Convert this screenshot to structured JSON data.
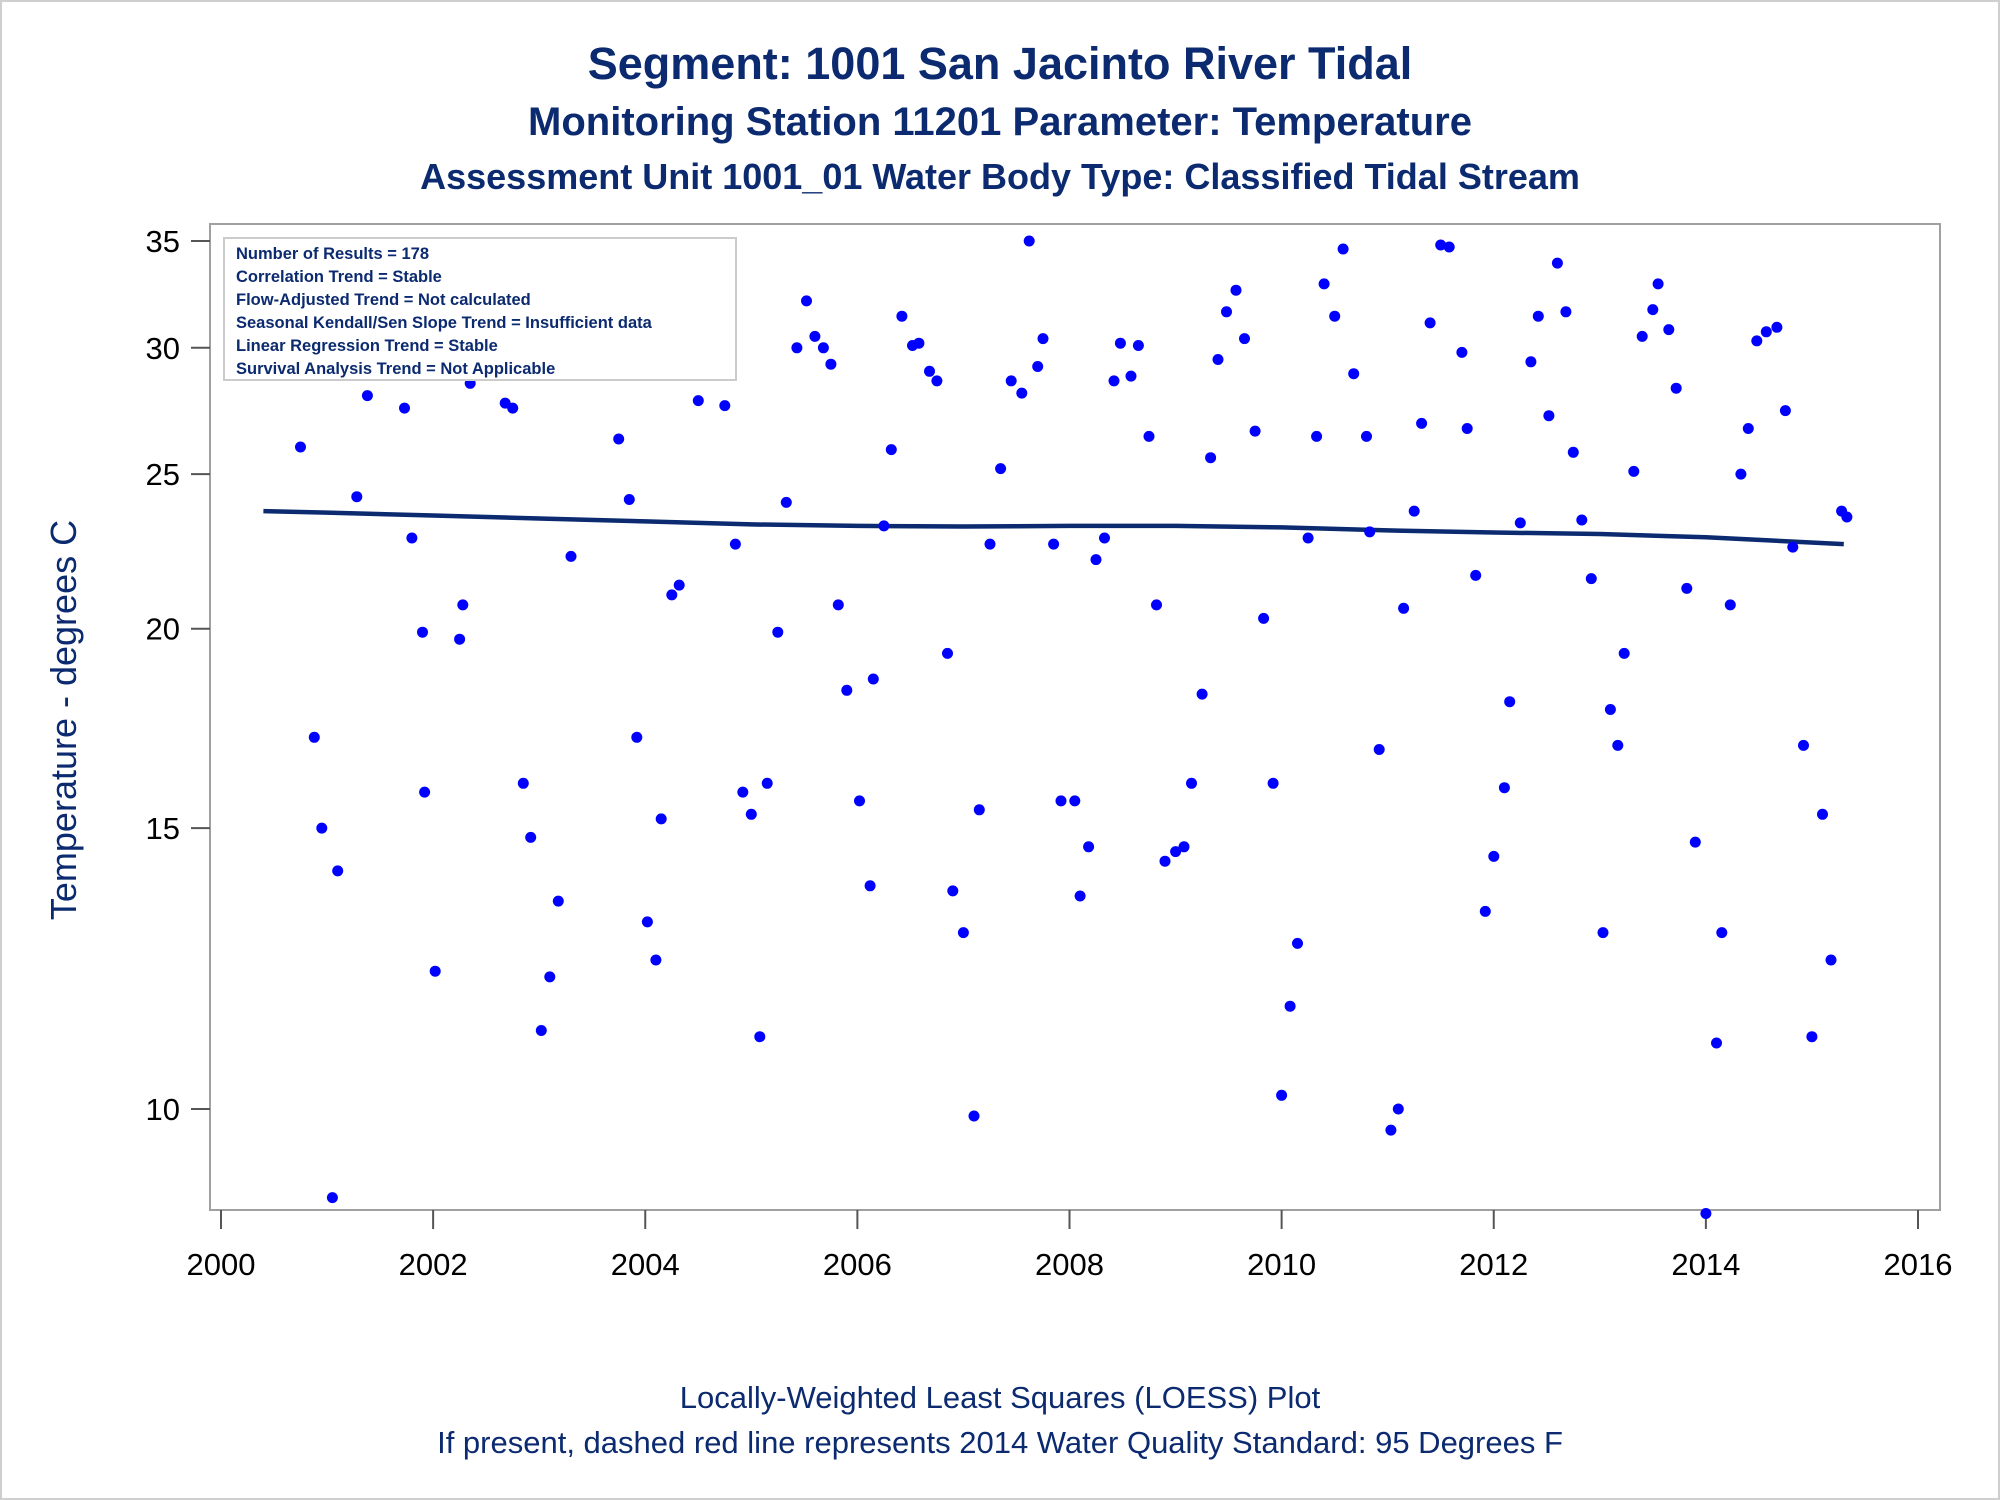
{
  "titles": {
    "line1": "Segment: 1001  San Jacinto River Tidal",
    "line2": "Monitoring Station 11201 Parameter: Temperature",
    "line3": "Assessment Unit 1001_01   Water Body Type: Classified Tidal Stream"
  },
  "footnotes": {
    "line1": "Locally-Weighted Least Squares (LOESS) Plot",
    "line2": "If present, dashed red line represents 2014 Water Quality Standard: 95   Degrees F"
  },
  "inset": [
    "Number of Results = 178",
    "Correlation Trend = Stable",
    "Flow-Adjusted Trend = Not calculated",
    "Seasonal Kendall/Sen Slope Trend = Insufficient data",
    "Linear Regression Trend = Stable",
    "Survival Analysis Trend = Not Applicable"
  ],
  "colors": {
    "points": "#0000ff",
    "loess": "#0b2a6f",
    "text": "#0b2a6f",
    "frame": "#a0a0a0"
  },
  "chart_data": {
    "type": "scatter",
    "ylabel": "Temperature - degrees C",
    "xlabel": "",
    "y_scale": "log",
    "xlim": [
      2000,
      2016
    ],
    "ylim": [
      8.5,
      35.5
    ],
    "x_ticks": [
      2000,
      2002,
      2004,
      2006,
      2008,
      2010,
      2012,
      2014,
      2016
    ],
    "y_ticks": [
      10,
      15,
      20,
      25,
      30,
      35
    ],
    "grid": false,
    "series": [
      {
        "kind": "scatter",
        "points": [
          [
            2000.4,
            29.3
          ],
          [
            2000.52,
            32.9
          ],
          [
            2000.65,
            33.0
          ],
          [
            2000.7,
            29.0
          ],
          [
            2000.75,
            26.0
          ],
          [
            2000.88,
            17.1
          ],
          [
            2000.95,
            15.0
          ],
          [
            2001.05,
            8.8
          ],
          [
            2001.1,
            14.1
          ],
          [
            2001.28,
            24.2
          ],
          [
            2001.38,
            28.0
          ],
          [
            2001.45,
            29.0
          ],
          [
            2001.55,
            33.0
          ],
          [
            2001.65,
            32.0
          ],
          [
            2001.73,
            27.5
          ],
          [
            2001.8,
            22.8
          ],
          [
            2001.9,
            19.9
          ],
          [
            2001.92,
            15.8
          ],
          [
            2002.02,
            12.2
          ],
          [
            2002.25,
            19.7
          ],
          [
            2002.28,
            20.7
          ],
          [
            2002.35,
            28.5
          ],
          [
            2002.42,
            29.0
          ],
          [
            2002.5,
            31.8
          ],
          [
            2002.6,
            30.0
          ],
          [
            2002.68,
            27.7
          ],
          [
            2002.75,
            27.5
          ],
          [
            2002.85,
            16.0
          ],
          [
            2002.92,
            14.8
          ],
          [
            2003.02,
            11.2
          ],
          [
            2003.1,
            12.1
          ],
          [
            2003.18,
            13.5
          ],
          [
            2003.3,
            22.2
          ],
          [
            2003.38,
            29.0
          ],
          [
            2003.4,
            30.0
          ],
          [
            2003.55,
            29.2
          ],
          [
            2003.6,
            31.9
          ],
          [
            2003.68,
            29.0
          ],
          [
            2003.75,
            26.3
          ],
          [
            2003.85,
            24.1
          ],
          [
            2003.92,
            17.1
          ],
          [
            2004.02,
            13.1
          ],
          [
            2004.1,
            12.4
          ],
          [
            2004.15,
            15.2
          ],
          [
            2004.25,
            21.0
          ],
          [
            2004.32,
            21.3
          ],
          [
            2004.4,
            30.0
          ],
          [
            2004.5,
            27.8
          ],
          [
            2004.6,
            32.0
          ],
          [
            2004.7,
            30.7
          ],
          [
            2004.75,
            27.6
          ],
          [
            2004.85,
            22.6
          ],
          [
            2004.92,
            15.8
          ],
          [
            2005.0,
            15.3
          ],
          [
            2005.08,
            11.1
          ],
          [
            2005.15,
            16.0
          ],
          [
            2005.25,
            19.9
          ],
          [
            2005.33,
            24.0
          ],
          [
            2005.43,
            30.0
          ],
          [
            2005.52,
            32.1
          ],
          [
            2005.6,
            30.5
          ],
          [
            2005.68,
            30.0
          ],
          [
            2005.75,
            29.3
          ],
          [
            2005.82,
            20.7
          ],
          [
            2005.9,
            18.3
          ],
          [
            2006.02,
            15.6
          ],
          [
            2006.12,
            13.8
          ],
          [
            2006.15,
            18.6
          ],
          [
            2006.25,
            23.2
          ],
          [
            2006.32,
            25.9
          ],
          [
            2006.42,
            31.4
          ],
          [
            2006.52,
            30.1
          ],
          [
            2006.58,
            30.2
          ],
          [
            2006.68,
            29.0
          ],
          [
            2006.75,
            28.6
          ],
          [
            2006.85,
            19.3
          ],
          [
            2006.9,
            13.7
          ],
          [
            2007.0,
            12.9
          ],
          [
            2007.1,
            9.9
          ],
          [
            2007.15,
            15.4
          ],
          [
            2007.25,
            22.6
          ],
          [
            2007.35,
            25.2
          ],
          [
            2007.45,
            28.6
          ],
          [
            2007.55,
            28.1
          ],
          [
            2007.62,
            35.0
          ],
          [
            2007.7,
            29.2
          ],
          [
            2007.75,
            30.4
          ],
          [
            2007.85,
            22.6
          ],
          [
            2007.92,
            15.6
          ],
          [
            2008.05,
            15.6
          ],
          [
            2008.1,
            13.6
          ],
          [
            2008.18,
            14.6
          ],
          [
            2008.25,
            22.1
          ],
          [
            2008.33,
            22.8
          ],
          [
            2008.42,
            28.6
          ],
          [
            2008.48,
            30.2
          ],
          [
            2008.58,
            28.8
          ],
          [
            2008.65,
            30.1
          ],
          [
            2008.75,
            26.4
          ],
          [
            2008.82,
            20.7
          ],
          [
            2008.9,
            14.3
          ],
          [
            2009.0,
            14.5
          ],
          [
            2009.08,
            14.6
          ],
          [
            2009.15,
            16.0
          ],
          [
            2009.25,
            18.2
          ],
          [
            2009.33,
            25.6
          ],
          [
            2009.4,
            29.5
          ],
          [
            2009.48,
            31.6
          ],
          [
            2009.57,
            32.6
          ],
          [
            2009.65,
            30.4
          ],
          [
            2009.75,
            26.6
          ],
          [
            2009.83,
            20.3
          ],
          [
            2009.92,
            16.0
          ],
          [
            2010.0,
            10.2
          ],
          [
            2010.08,
            11.6
          ],
          [
            2010.15,
            12.7
          ],
          [
            2010.25,
            22.8
          ],
          [
            2010.33,
            26.4
          ],
          [
            2010.4,
            32.9
          ],
          [
            2010.5,
            31.4
          ],
          [
            2010.58,
            34.6
          ],
          [
            2010.68,
            28.9
          ],
          [
            2010.8,
            26.4
          ],
          [
            2010.83,
            23.0
          ],
          [
            2010.92,
            16.8
          ],
          [
            2011.03,
            9.7
          ],
          [
            2011.1,
            10.0
          ],
          [
            2011.15,
            20.6
          ],
          [
            2011.25,
            23.7
          ],
          [
            2011.32,
            26.9
          ],
          [
            2011.4,
            31.1
          ],
          [
            2011.5,
            34.8
          ],
          [
            2011.58,
            34.7
          ],
          [
            2011.7,
            29.8
          ],
          [
            2011.75,
            26.7
          ],
          [
            2011.83,
            21.6
          ],
          [
            2011.92,
            13.3
          ],
          [
            2012.0,
            14.4
          ],
          [
            2012.1,
            15.9
          ],
          [
            2012.15,
            18.0
          ],
          [
            2012.25,
            23.3
          ],
          [
            2012.35,
            29.4
          ],
          [
            2012.42,
            31.4
          ],
          [
            2012.52,
            27.2
          ],
          [
            2012.6,
            33.9
          ],
          [
            2012.68,
            31.6
          ],
          [
            2012.75,
            25.8
          ],
          [
            2012.83,
            23.4
          ],
          [
            2012.92,
            21.5
          ],
          [
            2013.03,
            12.9
          ],
          [
            2013.1,
            17.8
          ],
          [
            2013.17,
            16.9
          ],
          [
            2013.23,
            19.3
          ],
          [
            2013.32,
            25.1
          ],
          [
            2013.4,
            30.5
          ],
          [
            2013.5,
            31.7
          ],
          [
            2013.55,
            32.9
          ],
          [
            2013.65,
            30.8
          ],
          [
            2013.72,
            28.3
          ],
          [
            2013.82,
            21.2
          ],
          [
            2013.9,
            14.7
          ],
          [
            2014.0,
            8.6
          ],
          [
            2014.1,
            11.0
          ],
          [
            2014.15,
            12.9
          ],
          [
            2014.23,
            20.7
          ],
          [
            2014.33,
            25.0
          ],
          [
            2014.4,
            26.7
          ],
          [
            2014.48,
            30.3
          ],
          [
            2014.57,
            30.7
          ],
          [
            2014.67,
            30.9
          ],
          [
            2014.75,
            27.4
          ],
          [
            2014.82,
            22.5
          ],
          [
            2014.92,
            16.9
          ],
          [
            2015.0,
            11.1
          ],
          [
            2015.1,
            15.3
          ],
          [
            2015.18,
            12.4
          ],
          [
            2015.28,
            23.7
          ],
          [
            2015.33,
            23.5
          ]
        ]
      },
      {
        "kind": "line",
        "x": [
          2000.4,
          2001.0,
          2002.0,
          2003.0,
          2004.0,
          2005.0,
          2006.0,
          2007.0,
          2008.0,
          2009.0,
          2010.0,
          2011.0,
          2012.0,
          2013.0,
          2014.0,
          2015.3
        ],
        "values": [
          23.7,
          23.65,
          23.55,
          23.45,
          23.35,
          23.25,
          23.2,
          23.18,
          23.2,
          23.2,
          23.15,
          23.05,
          22.98,
          22.93,
          22.82,
          22.6
        ]
      }
    ]
  }
}
